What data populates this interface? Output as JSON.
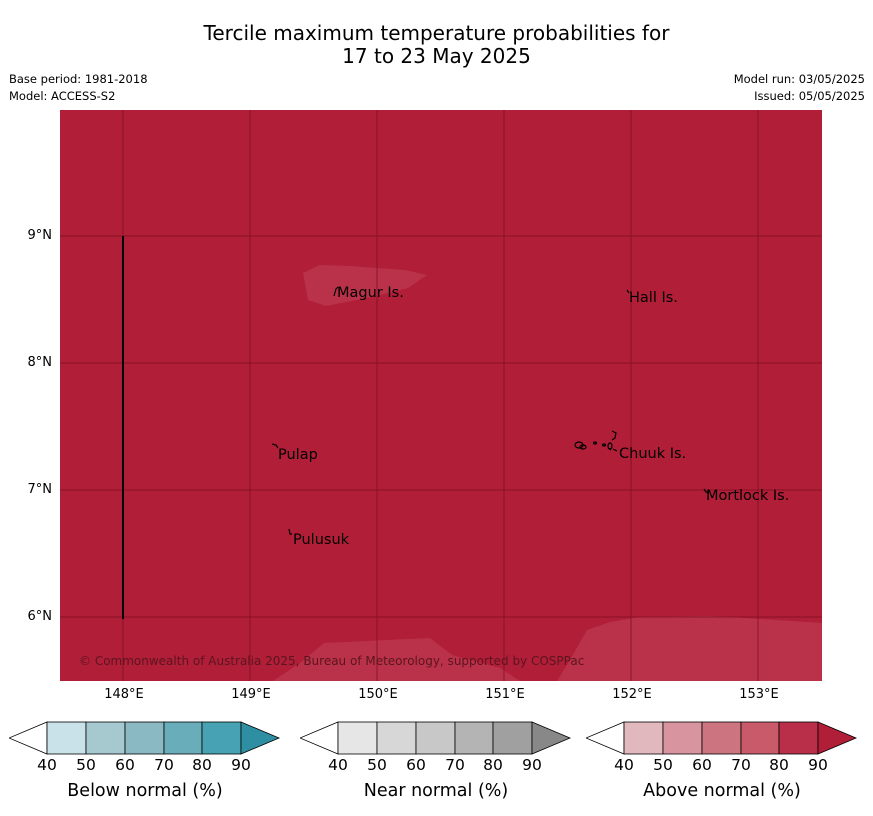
{
  "title": {
    "line1": "Tercile maximum temperature probabilities for",
    "line2": "17 to 23 May 2025"
  },
  "meta": {
    "base_period": "Base period: 1981-2018",
    "model": "Model: ACCESS-S2",
    "model_run": "Model run: 03/05/2025",
    "issued": "Issued: 05/05/2025"
  },
  "map": {
    "background_category": "Above normal",
    "background_probability_band": "80-90",
    "lighter_patch_band": "70-80",
    "colors": {
      "above_80_90": "#b11e37",
      "above_70_80": "#ba3249",
      "gridline": "#7c1023",
      "land": "#000000"
    },
    "lat_labels": [
      "9°N",
      "8°N",
      "7°N",
      "6°N"
    ],
    "lon_labels": [
      "148°E",
      "149°E",
      "150°E",
      "151°E",
      "152°E",
      "153°E"
    ],
    "islands": {
      "magur": "Magur Is.",
      "hall": "Hall Is.",
      "pulap": "Pulap",
      "chuuk": "Chuuk Is.",
      "mortlock": "Mortlock Is.",
      "pulusuk": "Pulusuk"
    },
    "copyright": "© Commonwealth of Australia 2025, Bureau of Meteorology, supported by COSPPac"
  },
  "legends": [
    {
      "title": "Below normal (%)",
      "ticks": [
        "40",
        "50",
        "60",
        "70",
        "80",
        "90"
      ],
      "colors": [
        "#ffffff",
        "#c9e1e8",
        "#a6c9d0",
        "#8ab8c3",
        "#6aadba",
        "#47a3b4",
        "#2e8fa3"
      ]
    },
    {
      "title": "Near normal (%)",
      "ticks": [
        "40",
        "50",
        "60",
        "70",
        "80",
        "90"
      ],
      "colors": [
        "#ffffff",
        "#e6e6e6",
        "#d7d7d7",
        "#c8c8c8",
        "#b4b4b4",
        "#a0a0a0",
        "#888888"
      ]
    },
    {
      "title": "Above normal (%)",
      "ticks": [
        "40",
        "50",
        "60",
        "70",
        "80",
        "90"
      ],
      "colors": [
        "#ffffff",
        "#e2b8bf",
        "#d8959f",
        "#cc7480",
        "#c85a6a",
        "#b92e48",
        "#b11e37"
      ]
    }
  ]
}
